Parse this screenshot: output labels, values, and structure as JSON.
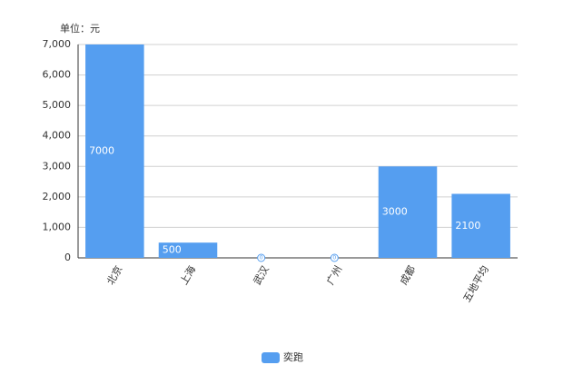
{
  "chart_data": {
    "type": "bar",
    "unit_label": "单位：元",
    "categories": [
      "北京",
      "上海",
      "武汉",
      "广州",
      "成都",
      "五地平均"
    ],
    "series": [
      {
        "name": "奕跑",
        "color": "#559ef0",
        "values": [
          7000,
          500,
          0,
          0,
          3000,
          2100
        ]
      }
    ],
    "ylim": [
      0,
      7000
    ],
    "yticks": [
      0,
      {
        "value": 1000,
        "label": "1,000"
      },
      {
        "value": 2000,
        "label": "2,000"
      },
      {
        "value": 3000,
        "label": "3,000"
      },
      {
        "value": 4000,
        "label": "4,000"
      },
      {
        "value": 5000,
        "label": "5,000"
      },
      {
        "value": 6000,
        "label": "6,000"
      },
      {
        "value": 7000,
        "label": "7,000"
      }
    ],
    "grid": true,
    "legend": "bottom"
  }
}
